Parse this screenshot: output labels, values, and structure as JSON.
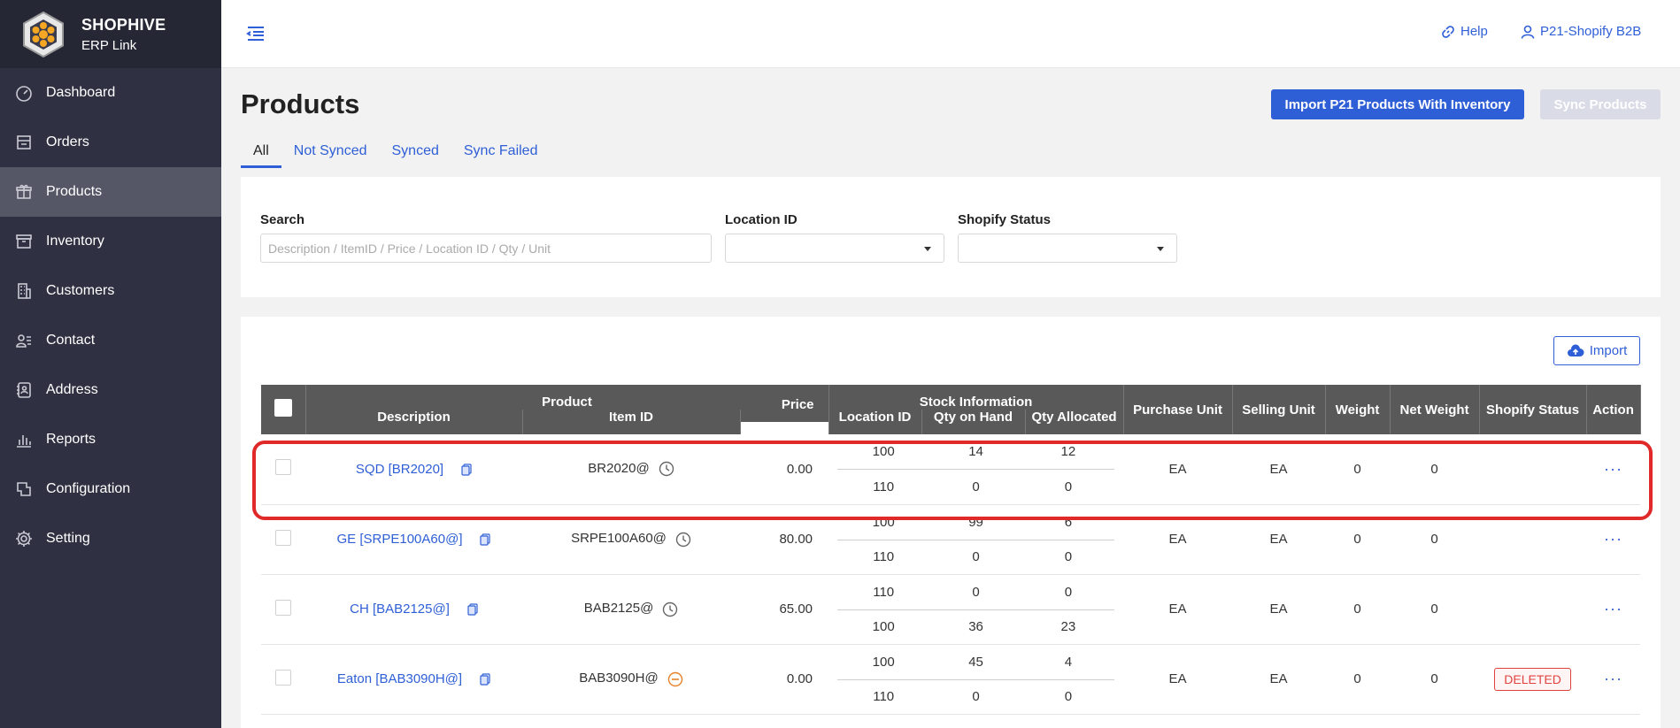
{
  "brand": {
    "name": "SHOPHIVE",
    "sub": "ERP Link"
  },
  "sidebar": {
    "items": [
      {
        "label": "Dashboard",
        "icon": "dashboard-icon"
      },
      {
        "label": "Orders",
        "icon": "orders-icon"
      },
      {
        "label": "Products",
        "icon": "gift-icon",
        "active": true
      },
      {
        "label": "Inventory",
        "icon": "archive-icon"
      },
      {
        "label": "Customers",
        "icon": "building-icon"
      },
      {
        "label": "Contact",
        "icon": "contact-icon"
      },
      {
        "label": "Address",
        "icon": "address-book-icon"
      },
      {
        "label": "Reports",
        "icon": "bar-chart-icon"
      },
      {
        "label": "Configuration",
        "icon": "config-icon"
      },
      {
        "label": "Setting",
        "icon": "gear-icon"
      }
    ]
  },
  "header": {
    "help": "Help",
    "user": "P21-Shopify B2B"
  },
  "page": {
    "title": "Products",
    "import_button": "Import P21 Products With Inventory",
    "sync_button": "Sync Products"
  },
  "tabs": [
    "All",
    "Not Synced",
    "Synced",
    "Sync Failed"
  ],
  "filters": {
    "search_label": "Search",
    "search_placeholder": "Description / ItemID / Price / Location ID / Qty / Unit",
    "location_label": "Location ID",
    "status_label": "Shopify Status"
  },
  "table": {
    "import_label": "Import",
    "headers": {
      "product": "Product",
      "description": "Description",
      "item_id": "Item ID",
      "price": "Price",
      "stock": "Stock Information",
      "location_id": "Location ID",
      "qty_on_hand": "Qty on Hand",
      "qty_allocated": "Qty Allocated",
      "purchase_unit": "Purchase Unit",
      "selling_unit": "Selling Unit",
      "weight": "Weight",
      "net_weight": "Net Weight",
      "shopify_status": "Shopify Status",
      "action": "Action"
    },
    "rows": [
      {
        "description": "SQD [BR2020]",
        "item_id": "BR2020@",
        "item_icon": "clock-icon",
        "price": "0.00",
        "stock": [
          {
            "loc": "100",
            "on_hand": "14",
            "allocated": "12"
          },
          {
            "loc": "110",
            "on_hand": "0",
            "allocated": "0"
          }
        ],
        "purchase_unit": "EA",
        "selling_unit": "EA",
        "weight": "0",
        "net_weight": "0",
        "status": "",
        "action": "···"
      },
      {
        "description": "GE [SRPE100A60@]",
        "item_id": "SRPE100A60@",
        "item_icon": "clock-icon",
        "price": "80.00",
        "stock": [
          {
            "loc": "100",
            "on_hand": "99",
            "allocated": "6"
          },
          {
            "loc": "110",
            "on_hand": "0",
            "allocated": "0"
          }
        ],
        "purchase_unit": "EA",
        "selling_unit": "EA",
        "weight": "0",
        "net_weight": "0",
        "status": "",
        "action": "···"
      },
      {
        "description": "CH [BAB2125@]",
        "item_id": "BAB2125@",
        "item_icon": "clock-icon",
        "price": "65.00",
        "stock": [
          {
            "loc": "110",
            "on_hand": "0",
            "allocated": "0"
          },
          {
            "loc": "100",
            "on_hand": "36",
            "allocated": "23"
          }
        ],
        "purchase_unit": "EA",
        "selling_unit": "EA",
        "weight": "0",
        "net_weight": "0",
        "status": "",
        "action": "···"
      },
      {
        "description": "Eaton [BAB3090H@]",
        "item_id": "BAB3090H@",
        "item_icon": "minus-circle-icon",
        "price": "0.00",
        "stock": [
          {
            "loc": "100",
            "on_hand": "45",
            "allocated": "4"
          },
          {
            "loc": "110",
            "on_hand": "0",
            "allocated": "0"
          }
        ],
        "purchase_unit": "EA",
        "selling_unit": "EA",
        "weight": "0",
        "net_weight": "0",
        "status": "DELETED",
        "action": "···"
      }
    ]
  },
  "colors": {
    "accent": "#2f5fd6",
    "sidebar": "#2f3142",
    "highlight": "#e02a2a",
    "deleted": "#e0433f",
    "pending": "#e8822a"
  }
}
